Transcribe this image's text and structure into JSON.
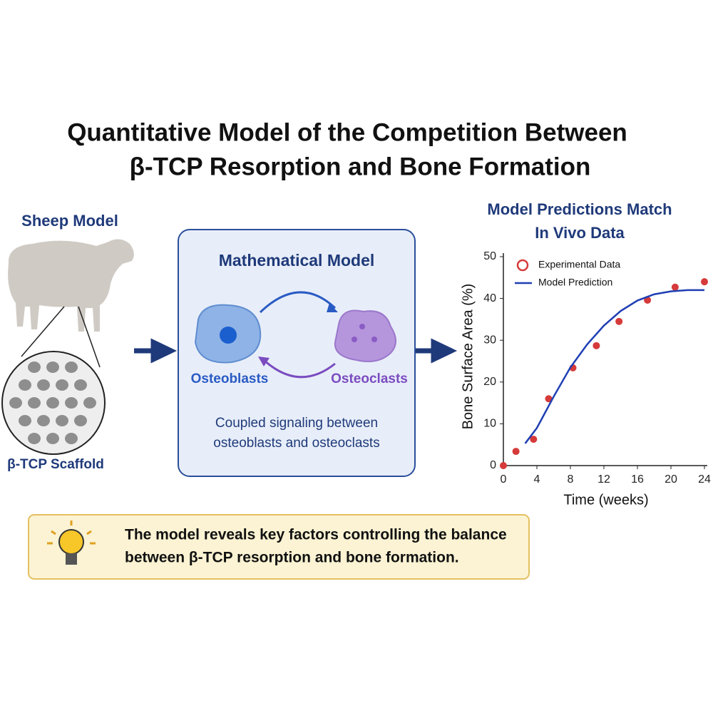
{
  "title": [
    "Quantitative Model of the Competition Between",
    "β-TCP Resorption and Bone Formation"
  ],
  "sheep_panel": {
    "label": "Sheep Model",
    "scaffold_label": "β-TCP Scaffold"
  },
  "model_box": {
    "title": "Mathematical Model",
    "cells": [
      "Osteoblasts",
      "Osteoclasts"
    ],
    "caption": [
      "Coupled signaling between",
      "osteoblasts and osteoclasts"
    ]
  },
  "insight": {
    "lines": [
      "The model reveals key factors controlling the balance",
      "between β-TCP resorption and bone formation."
    ]
  },
  "chart_data": {
    "type": "line",
    "title": [
      "Model Predictions Match",
      "In Vivo Data"
    ],
    "x_label": "Time (weeks)",
    "y_label": "Bone Surface Area (%)",
    "xlim": [
      0,
      24
    ],
    "ylim": [
      0,
      50
    ],
    "xticks": [
      0,
      4,
      8,
      12,
      16,
      20,
      24
    ],
    "yticks": [
      0,
      10,
      20,
      30,
      40,
      50
    ],
    "series": [
      {
        "name": "Experimental Data",
        "style": "markers",
        "color": "#d63a3a",
        "x": [
          0,
          1.5,
          3.6,
          5.4,
          8.3,
          11.1,
          13.8,
          17.2,
          20.5,
          24
        ],
        "values": [
          0,
          3.4,
          6.3,
          16,
          23.4,
          28.7,
          34.5,
          39.6,
          42.7,
          44
        ]
      },
      {
        "name": "Model Prediction",
        "style": "line",
        "color": "#1f3fb3",
        "x": [
          2.6,
          4,
          6,
          8,
          10,
          12,
          14,
          16,
          18,
          20,
          22,
          24
        ],
        "values": [
          5.3,
          9,
          16.5,
          23.5,
          29,
          33.5,
          37,
          39.5,
          41,
          41.7,
          42,
          42
        ]
      }
    ]
  }
}
